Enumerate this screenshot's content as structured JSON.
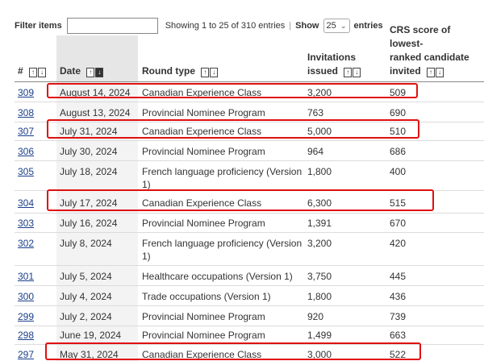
{
  "filter": {
    "label": "Filter items",
    "value": "",
    "info": "Showing 1 to 25 of 310 entries",
    "show_label": "Show",
    "page_size": "25",
    "entries_label": "entries"
  },
  "headers": {
    "num": "#",
    "date": "Date",
    "round": "Round type",
    "invites_line1": "Invitations",
    "invites_line2": "issued",
    "crs_line1": "CRS score of lowest-",
    "crs_line2": "ranked candidate",
    "crs_line3": "invited"
  },
  "rows": [
    {
      "num": "309",
      "date": "August 14, 2024",
      "round": "Canadian Experience Class",
      "invites": "3,200",
      "crs": "509"
    },
    {
      "num": "308",
      "date": "August 13, 2024",
      "round": "Provincial Nominee Program",
      "invites": "763",
      "crs": "690"
    },
    {
      "num": "307",
      "date": "July 31, 2024",
      "round": "Canadian Experience Class",
      "invites": "5,000",
      "crs": "510"
    },
    {
      "num": "306",
      "date": "July 30, 2024",
      "round": "Provincial Nominee Program",
      "invites": "964",
      "crs": "686"
    },
    {
      "num": "305",
      "date": "July 18, 2024",
      "round_line1": "French language proficiency (Version",
      "round_line2": "1)",
      "invites": "1,800",
      "crs": "400"
    },
    {
      "num": "304",
      "date": "July 17, 2024",
      "round": "Canadian Experience Class",
      "invites": "6,300",
      "crs": "515"
    },
    {
      "num": "303",
      "date": "July 16, 2024",
      "round": "Provincial Nominee Program",
      "invites": "1,391",
      "crs": "670"
    },
    {
      "num": "302",
      "date": "July 8, 2024",
      "round_line1": "French language proficiency (Version",
      "round_line2": "1)",
      "invites": "3,200",
      "crs": "420"
    },
    {
      "num": "301",
      "date": "July 5, 2024",
      "round": "Healthcare occupations (Version 1)",
      "invites": "3,750",
      "crs": "445"
    },
    {
      "num": "300",
      "date": "July 4, 2024",
      "round": "Trade occupations (Version 1)",
      "invites": "1,800",
      "crs": "436"
    },
    {
      "num": "299",
      "date": "July 2, 2024",
      "round": "Provincial Nominee Program",
      "invites": "920",
      "crs": "739"
    },
    {
      "num": "298",
      "date": "June 19, 2024",
      "round": "Provincial Nominee Program",
      "invites": "1,499",
      "crs": "663"
    },
    {
      "num": "297",
      "date": "May 31, 2024",
      "round": "Canadian Experience Class",
      "invites": "3,000",
      "crs": "522"
    }
  ]
}
